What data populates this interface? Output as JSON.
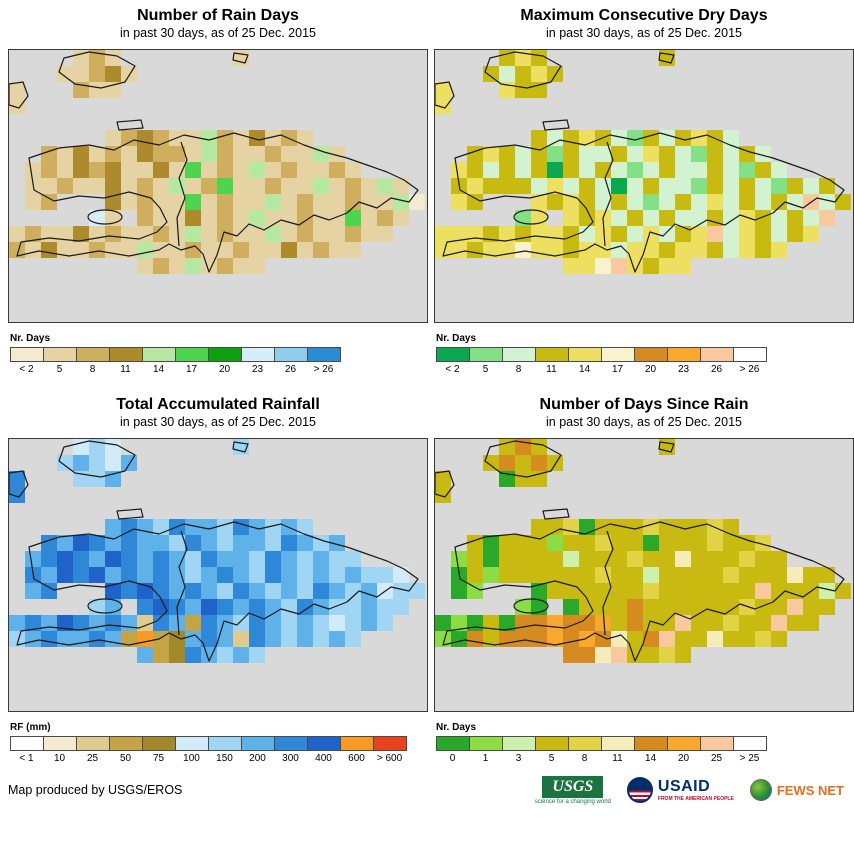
{
  "grid": {
    "cols": 26,
    "rows": 14,
    "cell_size": 16
  },
  "maps": {
    "m1": {
      "title": "Number of Rain Days",
      "subtitle": "in past 30 days, as of 25 Dec. 2015",
      "palette": [
        "#f4ead0",
        "#e6d3a3",
        "#cfae5e",
        "#ad8b2d",
        "#b5e8a0",
        "#4fd44f",
        "#0fa00f",
        "#d6eef8",
        "#8ecdec",
        "#2a8dd4"
      ],
      "legend": {
        "title": "Nr. Days",
        "classes": [
          "< 2",
          "5",
          "8",
          "11",
          "14",
          "17",
          "20",
          "23",
          "26",
          "> 26"
        ]
      },
      "grid": [
        "....bcb.......b...........",
        "...bbcdb..................",
        "b...cbb...................",
        "b.........................",
        "..........................",
        "......bcdcbbecbdbcb.......",
        "..cbdbcbdccbecbbcbbeb.....",
        ".bcbdcdbbdbfbcbebcbbcb....",
        ".bbcbbdbcbebcfbbcbbebcbeb.",
        ".bc...dbcbbfbcbbebcbbcbbea",
        ".....hb.cbbdbcbebbcbbfbcb.",
        "bcbbdbcbbcbebcbbebcbbcbb..",
        "cbdbbcbbebbcbbcbbdbcbb....",
        "........bcbebcbb.........."
      ]
    },
    "m2": {
      "title": "Maximum Consecutive Dry Days",
      "subtitle": "in past 30 days, as of 25 Dec. 2015",
      "palette": [
        "#0aa84f",
        "#84e084",
        "#d2f2d0",
        "#c9ba12",
        "#ede060",
        "#f8f3cf",
        "#d58b1f",
        "#f8a82d",
        "#f9c89f",
        "#ffffff"
      ],
      "legend": {
        "title": "Nr. Days",
        "classes": [
          "< 2",
          "5",
          "8",
          "11",
          "14",
          "17",
          "20",
          "23",
          "26",
          "> 26"
        ]
      },
      "grid": [
        "....ded.......d...........",
        "...dcded..................",
        "e...edd...................",
        "e.........................",
        "..........................",
        "......dcdedcbdcdedc.......",
        "..dedcdbdccdcedcbdcdc.....",
        ".edcdcdadcdcbcdccdcbdc....",
        ".dedddcecdcacdccbdcdcbdcd.",
        ".ed...ededcdcbcdcecdcdcicd",
        ".....be.edecdcdccdcedcdci.",
        "eeededeedcedcecdeicedcde..",
        "eedeefeedeeceedeedcede....",
        "........eefiedee.........."
      ]
    },
    "m3": {
      "title": "Total Accumulated Rainfall",
      "subtitle": "in past 30 days, as of 25 Dec. 2015",
      "palette": [
        "#ffffff",
        "#f4ead0",
        "#decb8d",
        "#c5a447",
        "#a2872b",
        "#d3eaf9",
        "#a0d6f4",
        "#5fb1ea",
        "#2f87d8",
        "#1f63c8",
        "#f79b23",
        "#e8431f"
      ],
      "legend": {
        "title": "RF (mm)",
        "classes": [
          "< 1",
          "10",
          "25",
          "50",
          "75",
          "100",
          "150",
          "200",
          "300",
          "400",
          "600",
          "> 600"
        ]
      },
      "grid": [
        "....fgf.......g...........",
        "...ghgfh..................",
        "i...ggh...................",
        "i.........................",
        "..........................",
        "......hihgihhgihghg.......",
        "..ihjihihhgihghhgihgh.....",
        ".hijihjihihgihhgihghgg....",
        ".ihjijhihihghihgihghghggf.",
        ".hi...jijihihgihghgihghfgg",
        ".....gh.ijihjihihgihgghgg.",
        "hihjihihcihdihgihghgfghg..",
        "ghihhihdkdehihcihghghg....",
        "........hdeihghg.........."
      ]
    },
    "m4": {
      "title": "Number of Days Since Rain",
      "subtitle": "in past 30 days, as of 25 Dec. 2015",
      "palette": [
        "#2aa82a",
        "#8cdc46",
        "#cdf0ad",
        "#c9ba12",
        "#e2d245",
        "#f4edbb",
        "#d58b1f",
        "#f8a82d",
        "#f9c89f",
        "#ffffff"
      ],
      "legend": {
        "title": "Nr. Days",
        "classes": [
          "0",
          "1",
          "3",
          "5",
          "8",
          "11",
          "14",
          "20",
          "25",
          "> 25"
        ]
      },
      "grid": [
        "....dgd.......d...........",
        "...dgdgd..................",
        "d...add...................",
        "d.........................",
        "..........................",
        "......ddeadddeddded.......",
        "..dadddbddeddadddedde.....",
        ".bdaddddcdddeddfdddedd....",
        ".adbddddddeddcddddedddfdd.",
        ".ab...addddddeddddddidddcd",
        ".....ba.adddgddddddeddidd.",
        "abadagghgghdgddiddeddidd..",
        "bagdggghghgfdgiddfdded....",
        "........ggfidded.........."
      ]
    }
  },
  "footer": {
    "credit": "Map produced by USGS/EROS"
  },
  "logos": {
    "usgs": {
      "label": "USGS",
      "tagline": "science for a changing world"
    },
    "usaid": {
      "label": "USAID",
      "tagline": "FROM THE AMERICAN PEOPLE"
    },
    "fewsnet": {
      "label": "FEWS NET"
    }
  }
}
